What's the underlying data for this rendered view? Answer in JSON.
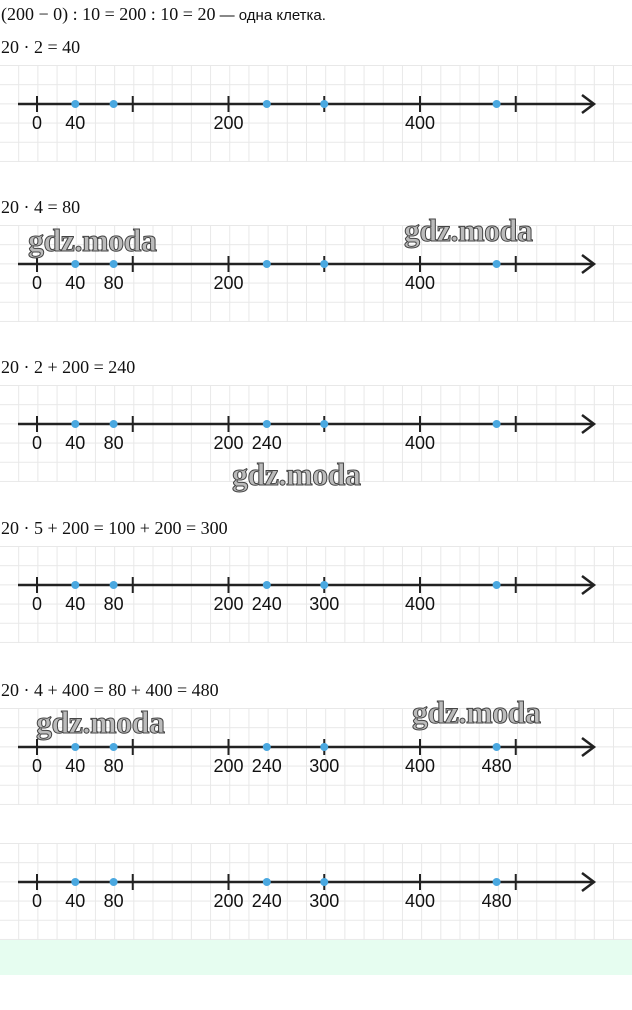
{
  "intro": {
    "formula": "(200 − 0) : 10 = 200 : 10 = 20",
    "text": " — одна клетка."
  },
  "sections": [
    {
      "formula": "20 · 2 = 40",
      "number_line": {
        "ticks": [
          0,
          100,
          200,
          300,
          400,
          500
        ],
        "points": [
          40,
          80,
          240,
          300,
          480
        ],
        "labels": [
          0,
          40,
          200,
          400
        ]
      },
      "watermarks": []
    },
    {
      "formula": "20 · 4 = 80",
      "number_line": {
        "ticks": [
          0,
          100,
          200,
          300,
          400,
          500
        ],
        "points": [
          40,
          80,
          240,
          300,
          480
        ],
        "labels": [
          0,
          40,
          80,
          200,
          400
        ]
      },
      "watermarks": [
        "gdz.moda",
        "gdz.moda"
      ]
    },
    {
      "formula": "20 · 2 + 200 = 240",
      "number_line": {
        "ticks": [
          0,
          100,
          200,
          300,
          400,
          500
        ],
        "points": [
          40,
          80,
          240,
          300,
          480
        ],
        "labels": [
          0,
          40,
          80,
          200,
          240,
          400
        ]
      },
      "watermarks": [
        "gdz.moda"
      ]
    },
    {
      "formula": "20 · 5 + 200 = 100 + 200 = 300",
      "number_line": {
        "ticks": [
          0,
          100,
          200,
          300,
          400,
          500
        ],
        "points": [
          40,
          80,
          240,
          300,
          480
        ],
        "labels": [
          0,
          40,
          80,
          200,
          240,
          300,
          400
        ]
      },
      "watermarks": []
    },
    {
      "formula": "20 · 4 + 400 = 80 + 400 = 480",
      "number_line": {
        "ticks": [
          0,
          100,
          200,
          300,
          400,
          500
        ],
        "points": [
          40,
          80,
          240,
          300,
          480
        ],
        "labels": [
          0,
          40,
          80,
          200,
          240,
          300,
          400,
          480
        ]
      },
      "watermarks": [
        "gdz.moda",
        "gdz.moda"
      ]
    },
    {
      "number_line": {
        "ticks": [
          0,
          100,
          200,
          300,
          400,
          500
        ],
        "points": [
          40,
          80,
          240,
          300,
          480
        ],
        "labels": [
          0,
          40,
          80,
          200,
          240,
          300,
          400,
          480
        ]
      },
      "watermarks": []
    }
  ]
}
